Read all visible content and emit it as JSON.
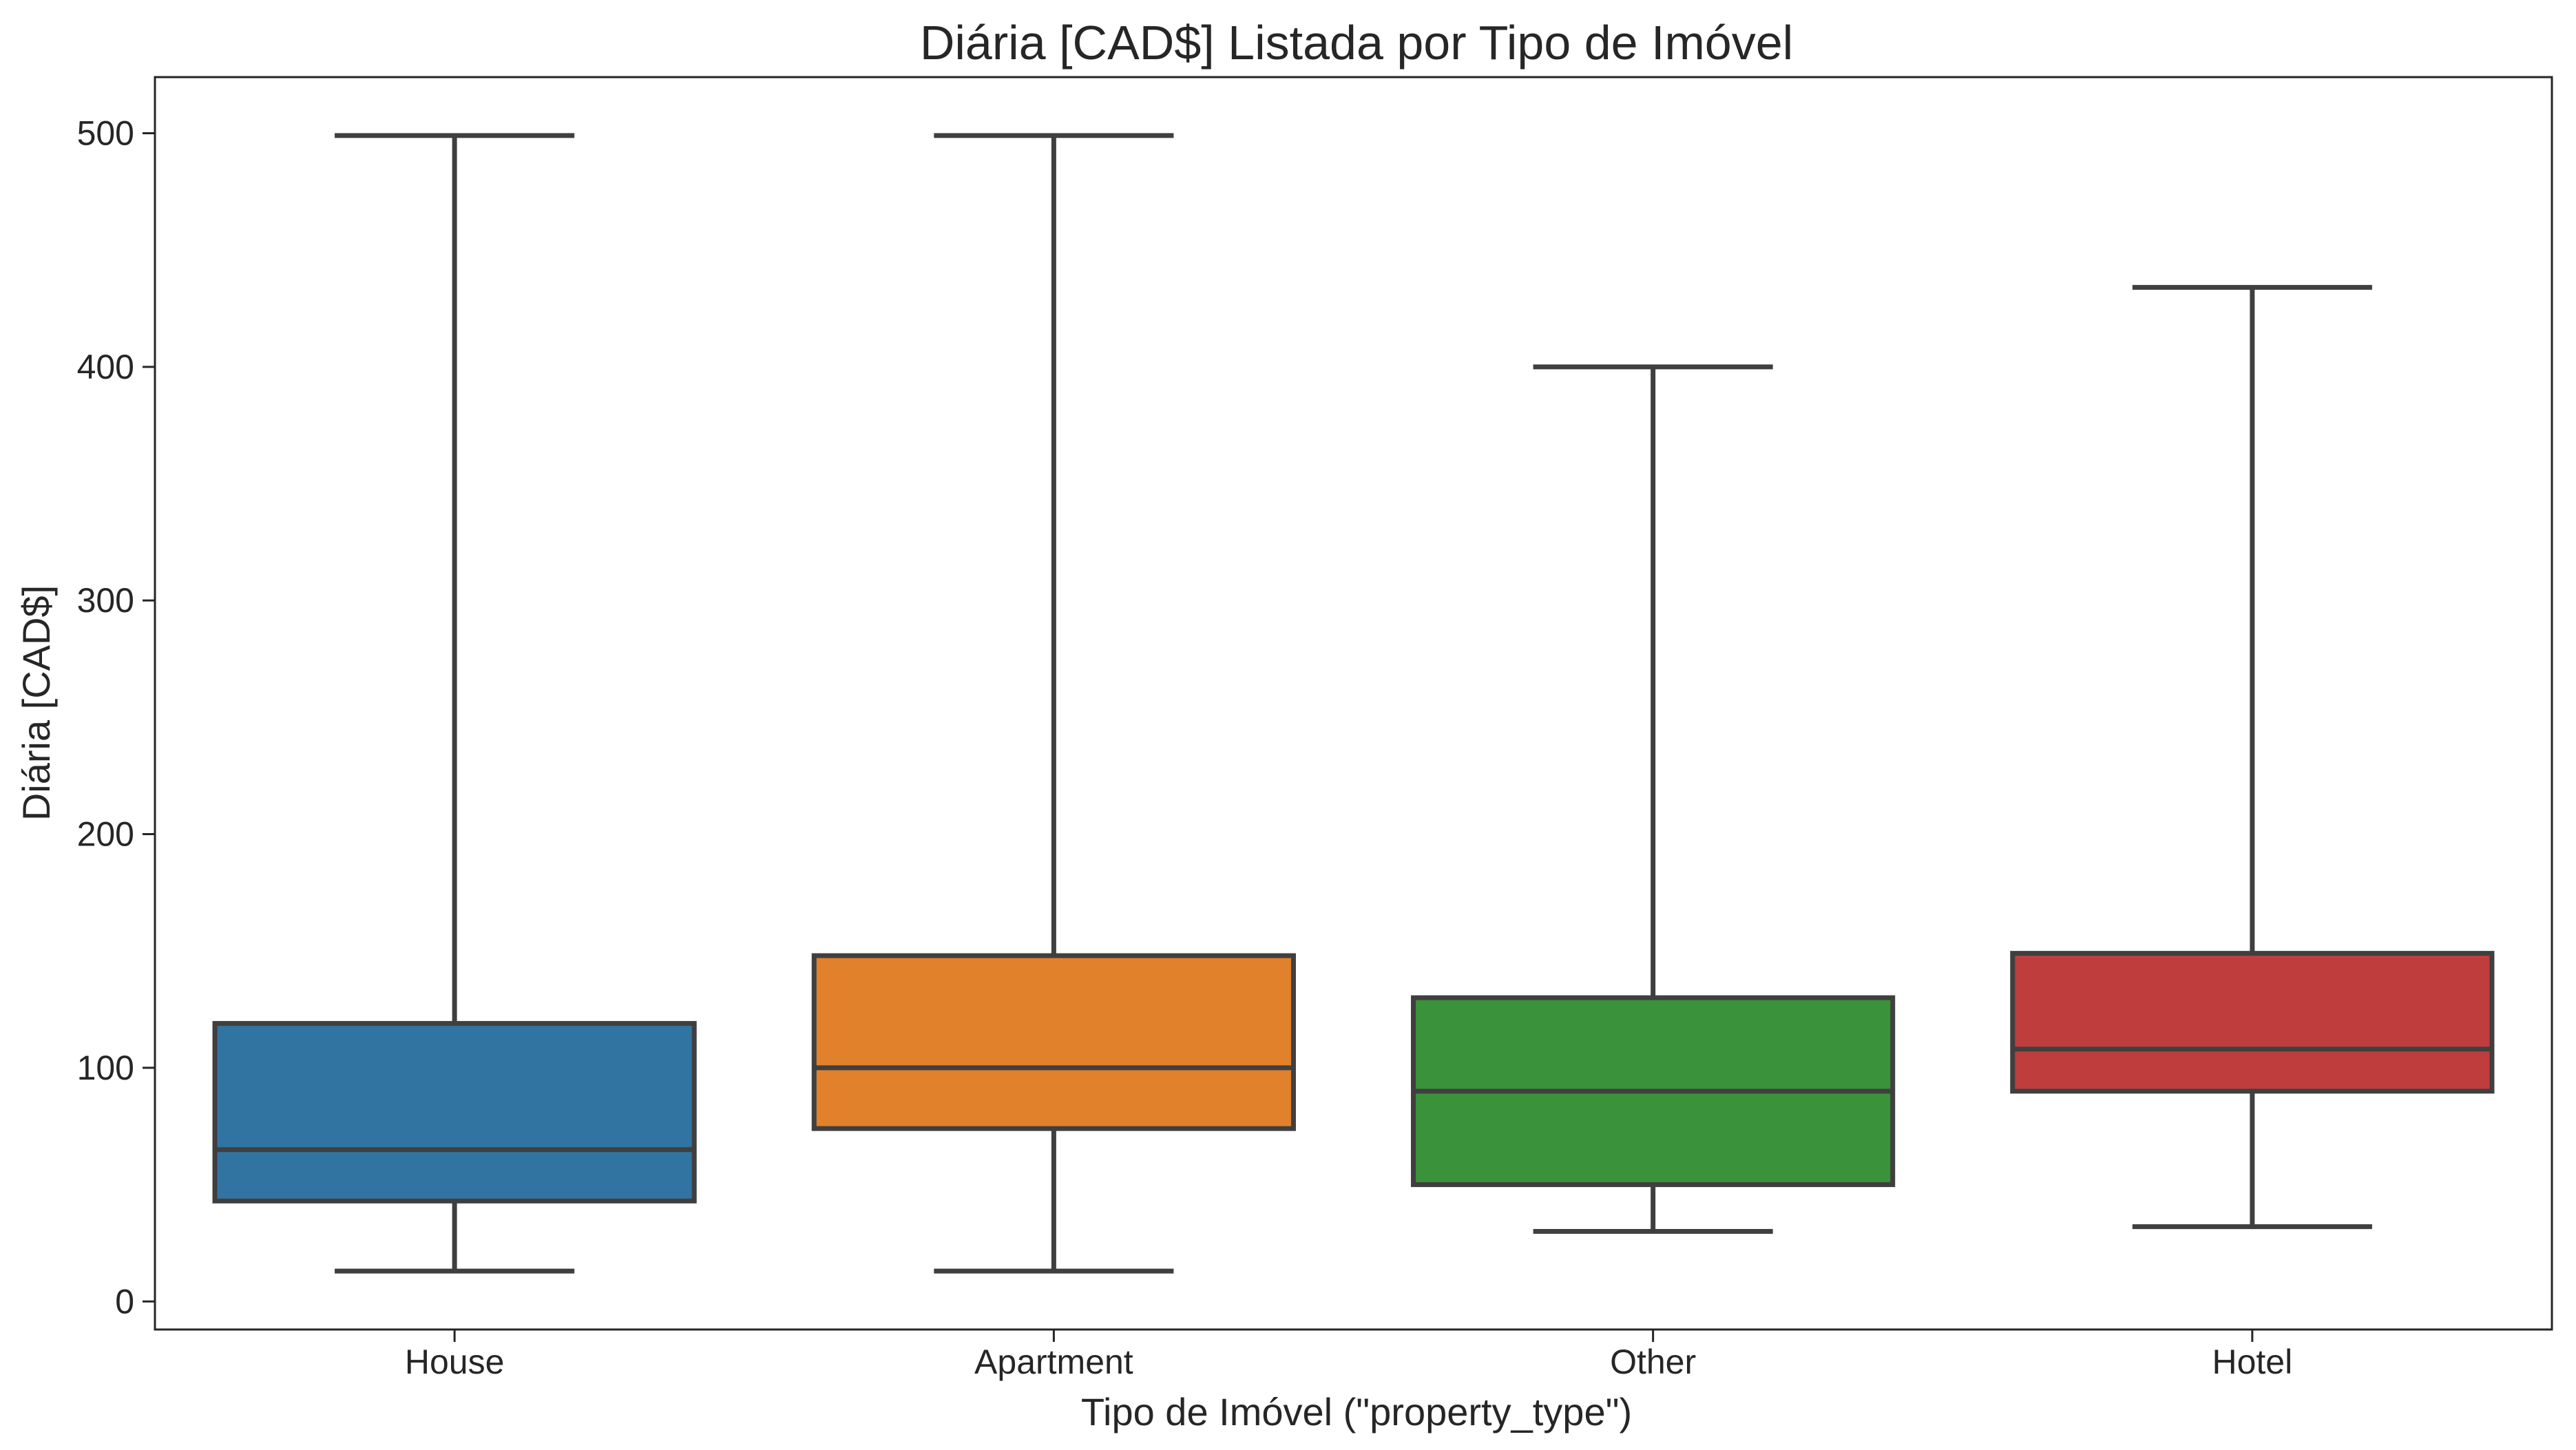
{
  "chart_data": {
    "type": "box",
    "title": "Diária [CAD$] Listada por Tipo de Imóvel",
    "xlabel": "Tipo de Imóvel (\"property_type\")",
    "ylabel": "Diária [CAD$]",
    "ylim": [
      -12,
      524
    ],
    "yticks": [
      0,
      100,
      200,
      300,
      400,
      500
    ],
    "grid": false,
    "legend": "none",
    "categories": [
      "House",
      "Apartment",
      "Other",
      "Hotel"
    ],
    "boxes": [
      {
        "category": "House",
        "whisker_low": 13,
        "q1": 43,
        "median": 65,
        "q3": 119,
        "whisker_high": 499,
        "color": "#3274a1"
      },
      {
        "category": "Apartment",
        "whisker_low": 13,
        "q1": 74,
        "median": 100,
        "q3": 148,
        "whisker_high": 499,
        "color": "#e1812c"
      },
      {
        "category": "Other",
        "whisker_low": 30,
        "q1": 50,
        "median": 90,
        "q3": 130,
        "whisker_high": 400,
        "color": "#3a923a"
      },
      {
        "category": "Hotel",
        "whisker_low": 32,
        "q1": 90,
        "median": 108,
        "q3": 149,
        "whisker_high": 434,
        "color": "#c03d3e"
      }
    ],
    "line_color": "#3f3f3f"
  }
}
